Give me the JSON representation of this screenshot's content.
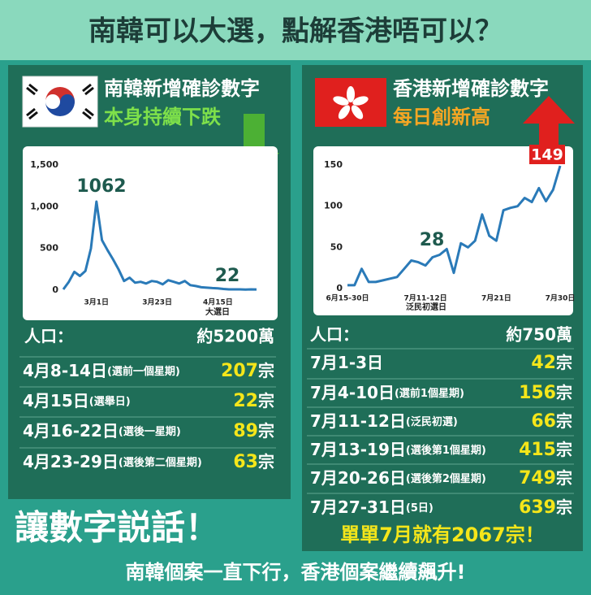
{
  "header": {
    "title": "南韓可以大選，點解香港唔可以？"
  },
  "korea": {
    "title": "南韓新增確診數字",
    "subtitle": "本身持續下跌",
    "population": {
      "label": "人口：",
      "value": "約5200萬"
    },
    "rows": [
      {
        "date": "4月8-14日",
        "note": "(選前一個星期)",
        "value": 207,
        "unit": "宗"
      },
      {
        "date": "4月15日",
        "note": "(選舉日)",
        "value": 22,
        "unit": "宗"
      },
      {
        "date": "4月16-22日",
        "note": "(選後一星期)",
        "value": 89,
        "unit": "宗"
      },
      {
        "date": "4月23-29日",
        "note": "(選後第二個星期)",
        "value": 63,
        "unit": "宗"
      }
    ]
  },
  "hong_kong": {
    "title": "香港新增確診數字",
    "subtitle": "每日創新高",
    "population": {
      "label": "人口：",
      "value": "約750萬"
    },
    "rows": [
      {
        "date": "7月1-3日",
        "value": 42,
        "unit": "宗"
      },
      {
        "date": "7月4-10日",
        "note": "(選前1個星期)",
        "value": 156,
        "unit": "宗"
      },
      {
        "date": "7月11-12日",
        "note": "(泛民初選)",
        "value": 66,
        "unit": "宗"
      },
      {
        "date": "7月13-19日",
        "note": "(選後第1個星期)",
        "value": 415,
        "unit": "宗"
      },
      {
        "date": "7月20-26日",
        "note": "(選後第2個星期)",
        "value": 749,
        "unit": "宗"
      },
      {
        "date": "7月27-31日",
        "note": "(5日)",
        "value": 639,
        "unit": "宗"
      }
    ]
  },
  "footer": {
    "slogan": "讓數字説話！",
    "highlight": "單單7月就有2067宗！",
    "caption": "南韓個案一直下行，香港個案繼續飆升!"
  },
  "chart_data": [
    {
      "type": "line",
      "color": "#2a7ab8",
      "categories": [
        null,
        null,
        null,
        null,
        null,
        null,
        "3月1日",
        null,
        null,
        null,
        null,
        null,
        null,
        null,
        null,
        null,
        null,
        "3月23日",
        null,
        null,
        null,
        null,
        null,
        null,
        null,
        null,
        null,
        null,
        "4月15日",
        null,
        null,
        null,
        null,
        null,
        null,
        null
      ],
      "values": [
        10,
        100,
        220,
        170,
        230,
        500,
        1062,
        600,
        480,
        370,
        250,
        110,
        150,
        90,
        100,
        80,
        110,
        100,
        70,
        120,
        100,
        80,
        110,
        60,
        50,
        35,
        30,
        25,
        22,
        15,
        10,
        10,
        10,
        8,
        10,
        9
      ],
      "ylim": [
        0,
        1500
      ],
      "yticks": [
        0,
        500,
        {
          "value": 1000,
          "label": "1,000"
        },
        {
          "value": 1500,
          "label": "1,500"
        }
      ],
      "annotations": [
        "1062",
        "22",
        "大選日"
      ]
    },
    {
      "type": "line",
      "color": "#2a7ab8",
      "categories": [
        "6月15-30日",
        null,
        null,
        null,
        null,
        null,
        null,
        null,
        null,
        null,
        null,
        "7月11-12日",
        null,
        null,
        null,
        null,
        null,
        null,
        null,
        null,
        null,
        "7月21日",
        null,
        null,
        null,
        null,
        null,
        null,
        null,
        null,
        "7月30日"
      ],
      "values": [
        4,
        4,
        24,
        8,
        8,
        10,
        12,
        14,
        24,
        34,
        32,
        28,
        38,
        41,
        48,
        19,
        55,
        50,
        58,
        90,
        64,
        58,
        95,
        98,
        100,
        110,
        105,
        122,
        106,
        120,
        149
      ],
      "ylim": [
        0,
        150
      ],
      "yticks": [
        0,
        50,
        100,
        150
      ],
      "annotations": [
        "28",
        "149",
        "泛民初選日"
      ]
    }
  ]
}
